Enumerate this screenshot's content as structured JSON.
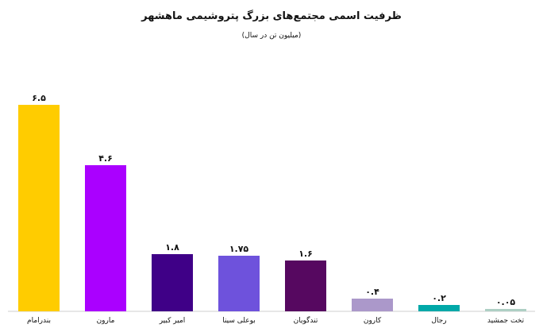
{
  "chart_data": {
    "type": "bar",
    "title": "ظرفیت اسمی مجتمع‌های بزرگ پتروشیمی ماهشهر",
    "subtitle": "(میلیون تن در سال)",
    "xlabel": "",
    "ylabel": "",
    "ylim": [
      0,
      6.5
    ],
    "grid": false,
    "categories": [
      "بندرامام",
      "مارون",
      "امیر کبیر",
      "بوعلی سینا",
      "تندگویان",
      "کارون",
      "رجال",
      "تخت جمشید"
    ],
    "values": [
      6.5,
      4.6,
      1.8,
      1.75,
      1.6,
      0.4,
      0.2,
      0.05
    ],
    "value_labels": [
      "۶.۵",
      "۴.۶",
      "۱.۸",
      "۱.۷۵",
      "۱.۶",
      "۰.۴",
      "۰.۲",
      "۰.۰۵"
    ],
    "colors": [
      "#FFCC00",
      "#AA00FF",
      "#3F0087",
      "#6E52DC",
      "#560860",
      "#AB98CA",
      "#00A8A8",
      "#AECFC4"
    ]
  }
}
